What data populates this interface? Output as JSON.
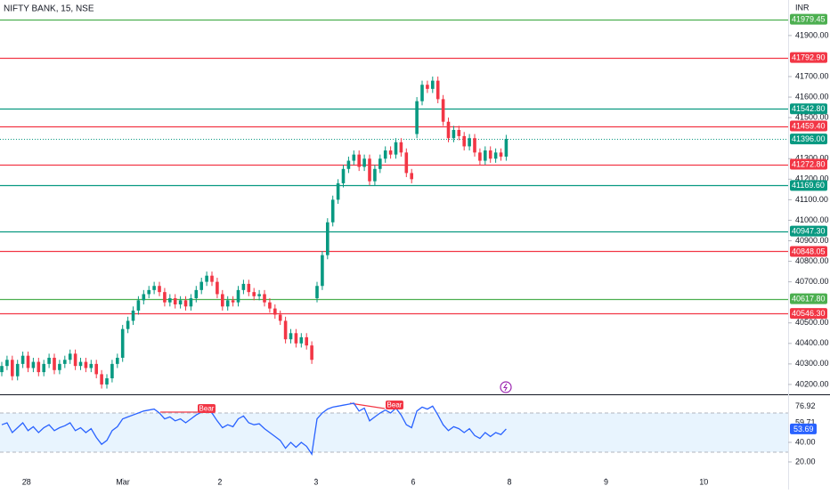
{
  "chart_data": {
    "type": "candlestick",
    "title": "NIFTY BANK, 15, NSE",
    "currency": "INR",
    "up_color": "#089981",
    "down_color": "#f23645",
    "ylim": [
      40152,
      42073
    ],
    "yticks": [
      {
        "value": 40200,
        "label": "40200.00"
      },
      {
        "value": 40300,
        "label": "40300.00"
      },
      {
        "value": 40400,
        "label": "40400.00"
      },
      {
        "value": 40500,
        "label": "40500.00"
      },
      {
        "value": 40700,
        "label": "40700.00"
      },
      {
        "value": 40800,
        "label": "40800.00"
      },
      {
        "value": 40900,
        "label": "40900.00"
      },
      {
        "value": 41000,
        "label": "41000.00"
      },
      {
        "value": 41100,
        "label": "41100.00"
      },
      {
        "value": 41200,
        "label": "41200.00"
      },
      {
        "value": 41300,
        "label": "41300.00"
      },
      {
        "value": 41500,
        "label": "41500.00"
      },
      {
        "value": 41600,
        "label": "41600.00"
      },
      {
        "value": 41700,
        "label": "41700.00"
      },
      {
        "value": 41900,
        "label": "41900.00"
      }
    ],
    "xlim": [
      -0.34,
      149.66
    ],
    "xticks": [
      {
        "value": 4.7,
        "label": "28"
      },
      {
        "value": 23.05,
        "label": "Mar"
      },
      {
        "value": 41.5,
        "label": "2"
      },
      {
        "value": 59.8,
        "label": "3"
      },
      {
        "value": 78.3,
        "label": "6"
      },
      {
        "value": 96.6,
        "label": "8"
      },
      {
        "value": 115,
        "label": "9"
      },
      {
        "value": 133.6,
        "label": "10"
      }
    ],
    "levels": [
      {
        "value": 41979.45,
        "label": "41979.45",
        "color": "#4caf50"
      },
      {
        "value": 41792.9,
        "label": "41792.90",
        "color": "#f23645"
      },
      {
        "value": 41542.8,
        "label": "41542.80",
        "color": "#089981"
      },
      {
        "value": 41459.4,
        "label": "41459.40",
        "color": "#f23645"
      },
      {
        "value": 41396,
        "label": "41396.00",
        "color": "#089981",
        "dotted": true
      },
      {
        "value": 41272.8,
        "label": "41272.80",
        "color": "#f23645"
      },
      {
        "value": 41169.6,
        "label": "41169.60",
        "color": "#089981"
      },
      {
        "value": 40947.3,
        "label": "40947.30",
        "color": "#089981"
      },
      {
        "value": 40848.05,
        "label": "40848.05",
        "color": "#f23645"
      },
      {
        "value": 40617.8,
        "label": "40617.80",
        "color": "#4caf50"
      },
      {
        "value": 40546.3,
        "label": "40546.30",
        "color": "#f23645"
      }
    ],
    "ohlc": [
      [
        40260,
        40310,
        40240,
        40290
      ],
      [
        40290,
        40340,
        40270,
        40320
      ],
      [
        40320,
        40340,
        40220,
        40240
      ],
      [
        40240,
        40320,
        40220,
        40300
      ],
      [
        40300,
        40360,
        40280,
        40340
      ],
      [
        40340,
        40360,
        40260,
        40280
      ],
      [
        40280,
        40330,
        40260,
        40310
      ],
      [
        40310,
        40330,
        40240,
        40260
      ],
      [
        40260,
        40320,
        40240,
        40300
      ],
      [
        40300,
        40350,
        40280,
        40330
      ],
      [
        40330,
        40350,
        40250,
        40270
      ],
      [
        40270,
        40320,
        40250,
        40300
      ],
      [
        40300,
        40340,
        40280,
        40320
      ],
      [
        40320,
        40370,
        40300,
        40350
      ],
      [
        40350,
        40370,
        40270,
        40290
      ],
      [
        40290,
        40330,
        40270,
        40310
      ],
      [
        40310,
        40330,
        40260,
        40280
      ],
      [
        40280,
        40320,
        40260,
        40300
      ],
      [
        40300,
        40320,
        40230,
        40250
      ],
      [
        40250,
        40270,
        40180,
        40200
      ],
      [
        40200,
        40250,
        40180,
        40230
      ],
      [
        40230,
        40320,
        40210,
        40300
      ],
      [
        40300,
        40350,
        40280,
        40330
      ],
      [
        40330,
        40490,
        40310,
        40470
      ],
      [
        40470,
        40530,
        40450,
        40510
      ],
      [
        40510,
        40580,
        40490,
        40560
      ],
      [
        40560,
        40630,
        40540,
        40610
      ],
      [
        40610,
        40660,
        40590,
        40640
      ],
      [
        40640,
        40680,
        40620,
        40660
      ],
      [
        40660,
        40700,
        40640,
        40680
      ],
      [
        40680,
        40700,
        40630,
        40650
      ],
      [
        40650,
        40670,
        40580,
        40600
      ],
      [
        40600,
        40640,
        40580,
        40620
      ],
      [
        40620,
        40640,
        40570,
        40590
      ],
      [
        40590,
        40630,
        40570,
        40610
      ],
      [
        40610,
        40630,
        40560,
        40580
      ],
      [
        40580,
        40640,
        40560,
        40620
      ],
      [
        40620,
        40680,
        40600,
        40660
      ],
      [
        40660,
        40720,
        40640,
        40700
      ],
      [
        40700,
        40750,
        40680,
        40730
      ],
      [
        40730,
        40750,
        40680,
        40700
      ],
      [
        40700,
        40720,
        40620,
        40640
      ],
      [
        40640,
        40660,
        40560,
        40580
      ],
      [
        40580,
        40630,
        40560,
        40610
      ],
      [
        40610,
        40630,
        40580,
        40600
      ],
      [
        40600,
        40680,
        40580,
        40660
      ],
      [
        40660,
        40710,
        40640,
        40690
      ],
      [
        40690,
        40710,
        40630,
        40650
      ],
      [
        40650,
        40670,
        40610,
        40630
      ],
      [
        40630,
        40660,
        40610,
        40640
      ],
      [
        40640,
        40660,
        40580,
        40600
      ],
      [
        40600,
        40620,
        40550,
        40570
      ],
      [
        40570,
        40590,
        40520,
        40540
      ],
      [
        40540,
        40560,
        40490,
        40510
      ],
      [
        40510,
        40530,
        40400,
        40420
      ],
      [
        40420,
        40470,
        40400,
        40450
      ],
      [
        40450,
        40470,
        40380,
        40400
      ],
      [
        40400,
        40450,
        40380,
        40430
      ],
      [
        40430,
        40450,
        40370,
        40390
      ],
      [
        40390,
        40410,
        40300,
        40320
      ],
      [
        40620,
        40700,
        40600,
        40680
      ],
      [
        40680,
        40850,
        40660,
        40830
      ],
      [
        40830,
        41010,
        40810,
        40990
      ],
      [
        40990,
        41120,
        40970,
        41100
      ],
      [
        41100,
        41200,
        41080,
        41180
      ],
      [
        41180,
        41270,
        41160,
        41250
      ],
      [
        41250,
        41310,
        41230,
        41290
      ],
      [
        41290,
        41340,
        41270,
        41320
      ],
      [
        41320,
        41340,
        41240,
        41260
      ],
      [
        41260,
        41320,
        41240,
        41300
      ],
      [
        41300,
        41320,
        41170,
        41190
      ],
      [
        41190,
        41270,
        41170,
        41250
      ],
      [
        41250,
        41320,
        41230,
        41300
      ],
      [
        41300,
        41360,
        41280,
        41340
      ],
      [
        41340,
        41360,
        41300,
        41320
      ],
      [
        41320,
        41400,
        41300,
        41380
      ],
      [
        41380,
        41400,
        41310,
        41330
      ],
      [
        41330,
        41350,
        41210,
        41230
      ],
      [
        41230,
        41250,
        41180,
        41200
      ],
      [
        41420,
        41600,
        41400,
        41580
      ],
      [
        41580,
        41680,
        41560,
        41660
      ],
      [
        41660,
        41680,
        41620,
        41640
      ],
      [
        41640,
        41700,
        41620,
        41680
      ],
      [
        41680,
        41700,
        41570,
        41590
      ],
      [
        41590,
        41610,
        41460,
        41480
      ],
      [
        41480,
        41500,
        41380,
        41400
      ],
      [
        41400,
        41460,
        41380,
        41440
      ],
      [
        41440,
        41460,
        41390,
        41410
      ],
      [
        41410,
        41430,
        41340,
        41360
      ],
      [
        41360,
        41420,
        41340,
        41400
      ],
      [
        41400,
        41420,
        41310,
        41330
      ],
      [
        41330,
        41350,
        41270,
        41290
      ],
      [
        41290,
        41360,
        41270,
        41340
      ],
      [
        41340,
        41360,
        41280,
        41300
      ],
      [
        41300,
        41350,
        41280,
        41330
      ],
      [
        41330,
        41350,
        41290,
        41310
      ],
      [
        41310,
        41416,
        41290,
        41396
      ]
    ],
    "rsi": {
      "color": "#2962ff",
      "ylim": [
        3.6,
        89.1
      ],
      "band": [
        30,
        70
      ],
      "yticks": [
        {
          "value": 40,
          "label": "40.00"
        },
        {
          "value": 20,
          "label": "20.00"
        }
      ],
      "markers": [
        76.92,
        59.71
      ],
      "values": [
        58,
        60,
        50,
        55,
        60,
        52,
        56,
        50,
        55,
        58,
        52,
        55,
        57,
        60,
        52,
        55,
        50,
        54,
        45,
        38,
        42,
        52,
        56,
        64,
        66,
        68,
        70,
        72,
        73,
        74,
        70,
        64,
        66,
        62,
        64,
        60,
        64,
        68,
        71,
        73,
        70,
        62,
        55,
        58,
        56,
        64,
        67,
        60,
        58,
        59,
        54,
        50,
        46,
        42,
        34,
        40,
        35,
        40,
        36,
        28,
        64,
        70,
        74,
        76,
        77,
        78,
        79,
        80,
        72,
        75,
        62,
        66,
        70,
        73,
        70,
        75,
        68,
        58,
        55,
        72,
        76,
        74,
        77,
        68,
        58,
        52,
        56,
        54,
        50,
        54,
        47,
        44,
        50,
        46,
        50,
        48,
        53.69
      ]
    },
    "annotations": [
      "Bear",
      "Bear"
    ]
  }
}
